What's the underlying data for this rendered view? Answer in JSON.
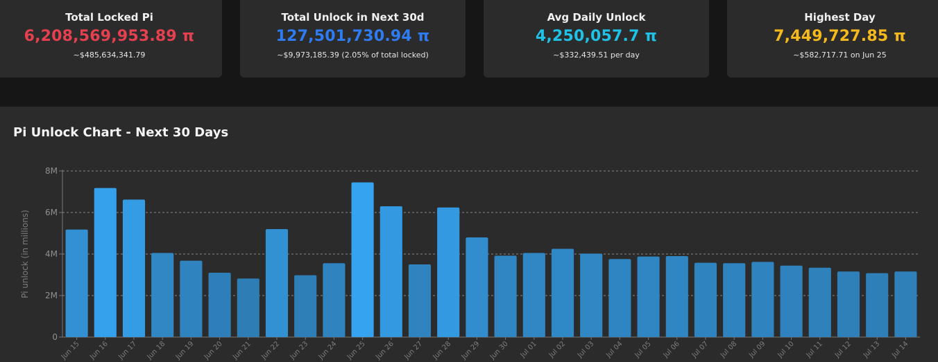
{
  "cards": [
    {
      "title": "Total Locked Pi",
      "value": "6,208,569,953.89 π",
      "sub": "~$485,634,341.79",
      "color": "#e5404f"
    },
    {
      "title": "Total Unlock in Next 30d",
      "value": "127,501,730.94 π",
      "sub": "~$9,973,185.39 (2.05% of total locked)",
      "color": "#2f7bf2"
    },
    {
      "title": "Avg Daily Unlock",
      "value": "4,250,057.7 π",
      "sub": "~$332,439.51 per day",
      "color": "#1fc2e6"
    },
    {
      "title": "Highest Day",
      "value": "7,449,727.85 π",
      "sub": "~$582,717.71 on Jun 25",
      "color": "#f6b91d"
    }
  ],
  "chart_data": {
    "type": "bar",
    "title": "Pi Unlock Chart - Next 30 Days",
    "ylabel": "Pi unlock (in millions)",
    "ylim": [
      0,
      8000000
    ],
    "yticks": [
      0,
      2000000,
      4000000,
      6000000,
      8000000
    ],
    "ytick_labels": [
      "0",
      "2M",
      "4M",
      "6M",
      "8M"
    ],
    "grid": true,
    "categories": [
      "Jun 15",
      "Jun 16",
      "Jun 17",
      "Jun 18",
      "Jun 19",
      "Jun 20",
      "Jun 21",
      "Jun 22",
      "Jun 23",
      "Jun 24",
      "Jun 25",
      "Jun 26",
      "Jun 27",
      "Jun 28",
      "Jun 29",
      "Jun 30",
      "Jul 01",
      "Jul 02",
      "Jul 03",
      "Jul 04",
      "Jul 05",
      "Jul 06",
      "Jul 07",
      "Jul 08",
      "Jul 09",
      "Jul 10",
      "Jul 11",
      "Jul 12",
      "Jul 13",
      "Jul 14"
    ],
    "values": [
      5180000,
      7180000,
      6620000,
      4050000,
      3680000,
      3100000,
      2820000,
      5200000,
      2980000,
      3560000,
      7449727.85,
      6300000,
      3500000,
      6240000,
      4800000,
      3920000,
      4050000,
      4250000,
      4020000,
      3760000,
      3880000,
      3900000,
      3580000,
      3560000,
      3620000,
      3440000,
      3340000,
      3160000,
      3080000,
      3160000
    ],
    "bar_color_low": "#2e7db5",
    "bar_color_high": "#35a3ef"
  }
}
